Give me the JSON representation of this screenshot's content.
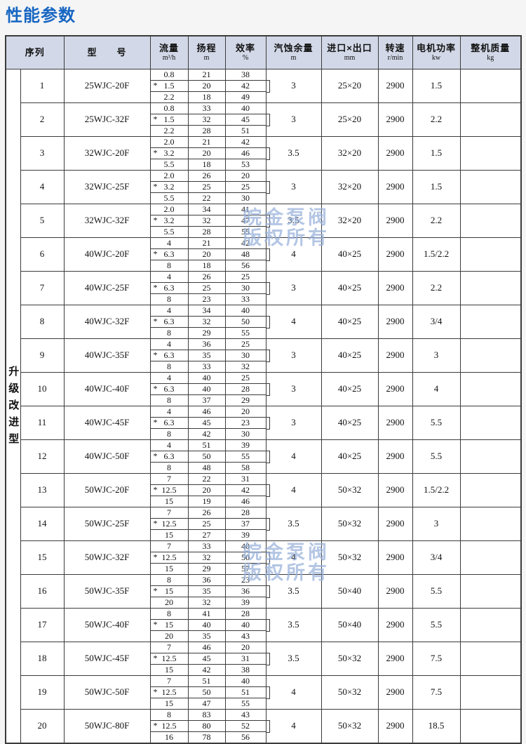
{
  "page_title": "性能参数",
  "watermark": {
    "line1": "皖金泵阀",
    "line2": "版权所有"
  },
  "colors": {
    "title": "#1766c2",
    "header_bg": "#d2d8e7",
    "watermark": "#98b1da"
  },
  "table": {
    "group_label": "升级改进型",
    "star_mark": "*",
    "headers": [
      {
        "label": "序列",
        "unit": ""
      },
      {
        "label": "型　　号",
        "unit": ""
      },
      {
        "label": "流量",
        "unit": "m³/h"
      },
      {
        "label": "扬程",
        "unit": "m"
      },
      {
        "label": "效率",
        "unit": "%"
      },
      {
        "label": "汽蚀余量",
        "unit": "m"
      },
      {
        "label": "进口×出口",
        "unit": "mm"
      },
      {
        "label": "转速",
        "unit": "r/min"
      },
      {
        "label": "电机功率",
        "unit": "kw"
      },
      {
        "label": "整机质量",
        "unit": "kg"
      }
    ],
    "rows": [
      {
        "no": "1",
        "model": "25WJC-20F",
        "flow": [
          "0.8",
          "1.5",
          "2.2"
        ],
        "head": [
          "21",
          "20",
          "18"
        ],
        "eff": [
          "38",
          "42",
          "49"
        ],
        "npsh": "3",
        "ports": "25×20",
        "speed": "2900",
        "power": "1.5",
        "weight": ""
      },
      {
        "no": "2",
        "model": "25WJC-32F",
        "flow": [
          "0.8",
          "1.5",
          "2.2"
        ],
        "head": [
          "33",
          "32",
          "28"
        ],
        "eff": [
          "40",
          "45",
          "51"
        ],
        "npsh": "3",
        "ports": "25×20",
        "speed": "2900",
        "power": "2.2",
        "weight": ""
      },
      {
        "no": "3",
        "model": "32WJC-20F",
        "flow": [
          "2.0",
          "3.2",
          "5.5"
        ],
        "head": [
          "21",
          "20",
          "18"
        ],
        "eff": [
          "42",
          "46",
          "53"
        ],
        "npsh": "3.5",
        "ports": "32×20",
        "speed": "2900",
        "power": "1.5",
        "weight": ""
      },
      {
        "no": "4",
        "model": "32WJC-25F",
        "flow": [
          "2.0",
          "3.2",
          "5.5"
        ],
        "head": [
          "26",
          "25",
          "22"
        ],
        "eff": [
          "20",
          "25",
          "30"
        ],
        "npsh": "3",
        "ports": "32×20",
        "speed": "2900",
        "power": "1.5",
        "weight": ""
      },
      {
        "no": "5",
        "model": "32WJC-32F",
        "flow": [
          "2.0",
          "3.2",
          "5.5"
        ],
        "head": [
          "34",
          "32",
          "28"
        ],
        "eff": [
          "41",
          "47",
          "55"
        ],
        "npsh": "3.5",
        "ports": "32×20",
        "speed": "2900",
        "power": "2.2",
        "weight": ""
      },
      {
        "no": "6",
        "model": "40WJC-20F",
        "flow": [
          "4",
          "6.3",
          "8"
        ],
        "head": [
          "21",
          "20",
          "18"
        ],
        "eff": [
          "42",
          "48",
          "56"
        ],
        "npsh": "4",
        "ports": "40×25",
        "speed": "2900",
        "power": "1.5/2.2",
        "weight": ""
      },
      {
        "no": "7",
        "model": "40WJC-25F",
        "flow": [
          "4",
          "6.3",
          "8"
        ],
        "head": [
          "26",
          "25",
          "23"
        ],
        "eff": [
          "25",
          "30",
          "33"
        ],
        "npsh": "3",
        "ports": "40×25",
        "speed": "2900",
        "power": "2.2",
        "weight": ""
      },
      {
        "no": "8",
        "model": "40WJC-32F",
        "flow": [
          "4",
          "6.3",
          "8"
        ],
        "head": [
          "34",
          "32",
          "29"
        ],
        "eff": [
          "40",
          "50",
          "55"
        ],
        "npsh": "4",
        "ports": "40×25",
        "speed": "2900",
        "power": "3/4",
        "weight": ""
      },
      {
        "no": "9",
        "model": "40WJC-35F",
        "flow": [
          "4",
          "6.3",
          "8"
        ],
        "head": [
          "36",
          "35",
          "33"
        ],
        "eff": [
          "25",
          "30",
          "32"
        ],
        "npsh": "3",
        "ports": "40×25",
        "speed": "2900",
        "power": "3",
        "weight": ""
      },
      {
        "no": "10",
        "model": "40WJC-40F",
        "flow": [
          "4",
          "6.3",
          "8"
        ],
        "head": [
          "40",
          "40",
          "37"
        ],
        "eff": [
          "25",
          "28",
          "29"
        ],
        "npsh": "3",
        "ports": "40×25",
        "speed": "2900",
        "power": "4",
        "weight": ""
      },
      {
        "no": "11",
        "model": "40WJC-45F",
        "flow": [
          "4",
          "6.3",
          "8"
        ],
        "head": [
          "46",
          "45",
          "42"
        ],
        "eff": [
          "20",
          "23",
          "30"
        ],
        "npsh": "3",
        "ports": "40×25",
        "speed": "2900",
        "power": "5.5",
        "weight": ""
      },
      {
        "no": "12",
        "model": "40WJC-50F",
        "flow": [
          "4",
          "6.3",
          "8"
        ],
        "head": [
          "51",
          "50",
          "48"
        ],
        "eff": [
          "39",
          "55",
          "58"
        ],
        "npsh": "4",
        "ports": "40×25",
        "speed": "2900",
        "power": "5.5",
        "weight": ""
      },
      {
        "no": "13",
        "model": "50WJC-20F",
        "flow": [
          "7",
          "12.5",
          "15"
        ],
        "head": [
          "22",
          "20",
          "19"
        ],
        "eff": [
          "31",
          "42",
          "46"
        ],
        "npsh": "4",
        "ports": "50×32",
        "speed": "2900",
        "power": "1.5/2.2",
        "weight": ""
      },
      {
        "no": "14",
        "model": "50WJC-25F",
        "flow": [
          "7",
          "12.5",
          "15"
        ],
        "head": [
          "26",
          "25",
          "27"
        ],
        "eff": [
          "28",
          "37",
          "39"
        ],
        "npsh": "3.5",
        "ports": "50×32",
        "speed": "2900",
        "power": "3",
        "weight": ""
      },
      {
        "no": "15",
        "model": "50WJC-32F",
        "flow": [
          "7",
          "12.5",
          "15"
        ],
        "head": [
          "33",
          "32",
          "29"
        ],
        "eff": [
          "40",
          "50",
          "57"
        ],
        "npsh": "4",
        "ports": "50×32",
        "speed": "2900",
        "power": "3/4",
        "weight": ""
      },
      {
        "no": "16",
        "model": "50WJC-35F",
        "flow": [
          "8",
          "15",
          "20"
        ],
        "head": [
          "36",
          "35",
          "32"
        ],
        "eff": [
          "23",
          "36",
          "39"
        ],
        "npsh": "3.5",
        "ports": "50×40",
        "speed": "2900",
        "power": "5.5",
        "weight": ""
      },
      {
        "no": "17",
        "model": "50WJC-40F",
        "flow": [
          "8",
          "15",
          "20"
        ],
        "head": [
          "41",
          "40",
          "35"
        ],
        "eff": [
          "28",
          "40",
          "43"
        ],
        "npsh": "3.5",
        "ports": "50×40",
        "speed": "2900",
        "power": "5.5",
        "weight": ""
      },
      {
        "no": "18",
        "model": "50WJC-45F",
        "flow": [
          "7",
          "12.5",
          "15"
        ],
        "head": [
          "46",
          "45",
          "42"
        ],
        "eff": [
          "20",
          "31",
          "38"
        ],
        "npsh": "3.5",
        "ports": "50×32",
        "speed": "2900",
        "power": "7.5",
        "weight": ""
      },
      {
        "no": "19",
        "model": "50WJC-50F",
        "flow": [
          "7",
          "12.5",
          "15"
        ],
        "head": [
          "51",
          "50",
          "47"
        ],
        "eff": [
          "40",
          "51",
          "55"
        ],
        "npsh": "4",
        "ports": "50×32",
        "speed": "2900",
        "power": "7.5",
        "weight": ""
      },
      {
        "no": "20",
        "model": "50WJC-80F",
        "flow": [
          "8",
          "12.5",
          "16"
        ],
        "head": [
          "83",
          "80",
          "78"
        ],
        "eff": [
          "43",
          "52",
          "56"
        ],
        "npsh": "4",
        "ports": "50×32",
        "speed": "2900",
        "power": "18.5",
        "weight": ""
      }
    ]
  }
}
